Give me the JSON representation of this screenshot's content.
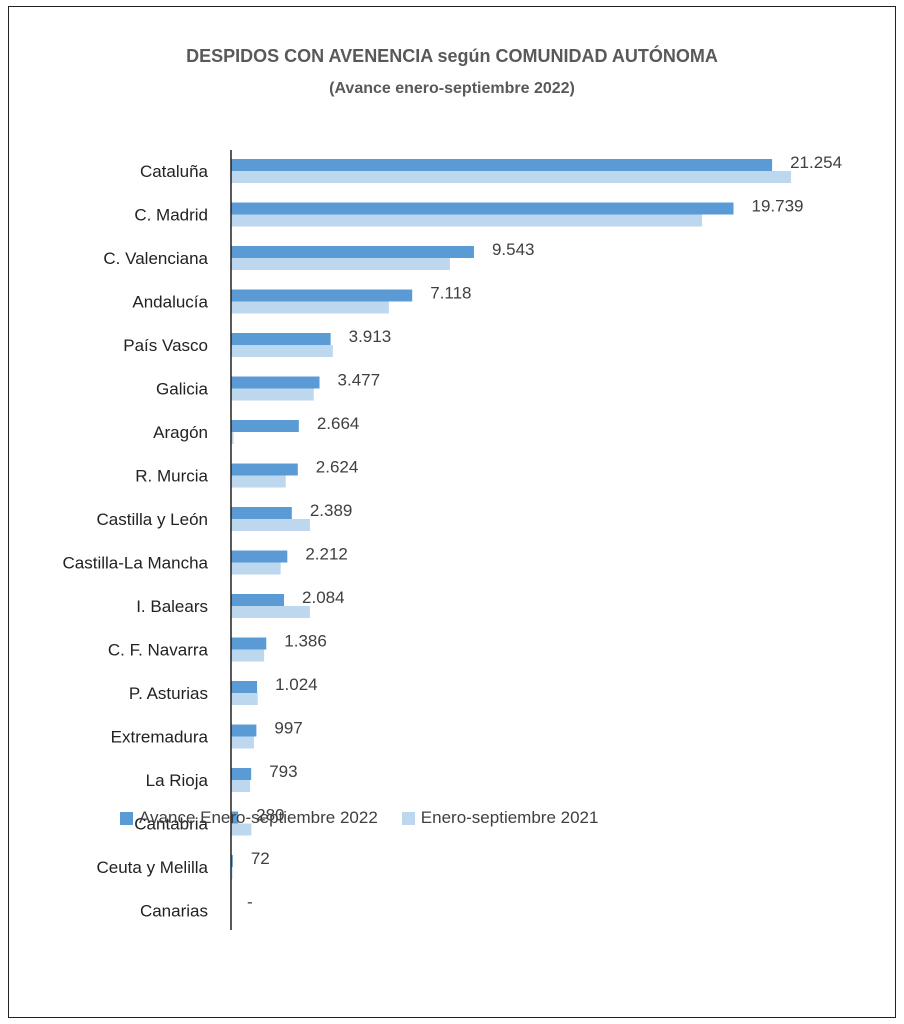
{
  "chart_data": {
    "type": "bar",
    "orientation": "horizontal",
    "title": "DESPIDOS  CON AVENENCIA  según COMUNIDAD  AUTÓNOMA",
    "subtitle": "(Avance enero-septiembre 2022)",
    "categories": [
      "Cataluña",
      "C. Madrid",
      "C. Valenciana",
      "Andalucía",
      "País Vasco",
      "Galicia",
      "Aragón",
      "R. Murcia",
      "Castilla y León",
      "Castilla-La Mancha",
      "I. Balears",
      "C. F. Navarra",
      "P. Asturias",
      "Extremadura",
      "La Rioja",
      "Cantabria",
      "Ceuta y Melilla",
      "Canarias"
    ],
    "series": [
      {
        "name": "Avance Enero-septiembre 2022",
        "color": "#5B9BD5",
        "values": [
          21254,
          19739,
          9543,
          7118,
          3913,
          3477,
          2664,
          2624,
          2389,
          2212,
          2084,
          1386,
          1024,
          997,
          793,
          280,
          72,
          0
        ],
        "labels": [
          "21.254",
          "19.739",
          "9.543",
          "7.118",
          "3.913",
          "3.477",
          "2.664",
          "2.624",
          "2.389",
          "2.212",
          "2.084",
          "1.386",
          "1.024",
          "997",
          "793",
          "280",
          "72",
          "-"
        ]
      },
      {
        "name": "Enero-septiembre  2021",
        "color": "#BDD7EE",
        "values": [
          22000,
          18500,
          8600,
          6200,
          4000,
          3250,
          100,
          2150,
          3100,
          1950,
          3100,
          1300,
          1050,
          900,
          750,
          800,
          60,
          0
        ]
      }
    ],
    "xlim": [
      0,
      24000
    ],
    "grid": false,
    "legend_position": "bottom"
  }
}
